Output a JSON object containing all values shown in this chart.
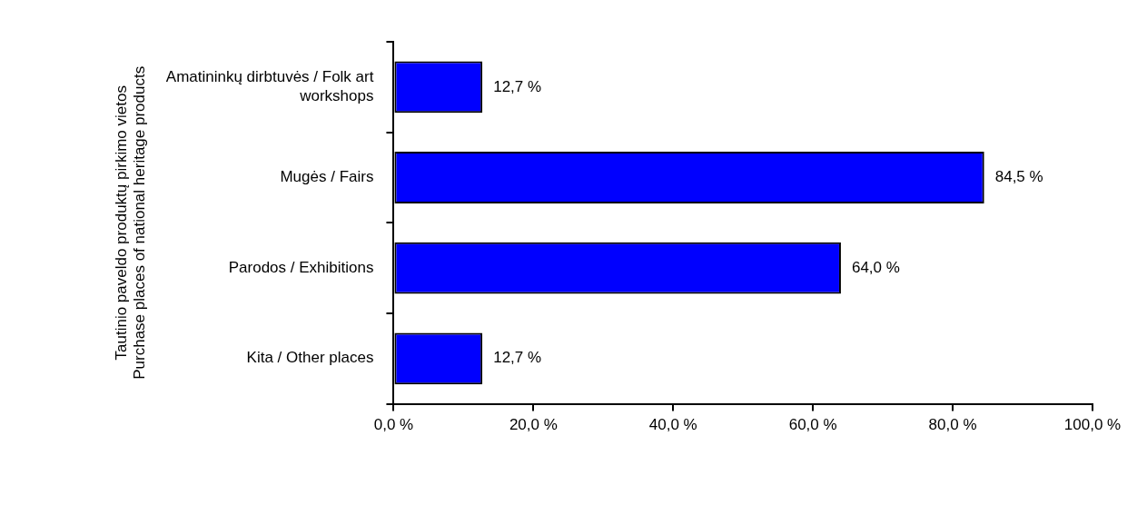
{
  "chart_data": {
    "type": "bar",
    "orientation": "horizontal",
    "ylabel": "Tautinio paveldo produktų pirkimo vietos\nPurchase places of national heritage products",
    "categories": [
      "Amatininkų dirbtuvės / Folk art workshops",
      "Mugės / Fairs",
      "Parodos / Exhibitions",
      "Kita / Other places"
    ],
    "values": [
      12.7,
      84.5,
      64.0,
      12.7
    ],
    "value_labels": [
      "12,7 %",
      "84,5 %",
      "64,0 %",
      "12,7 %"
    ],
    "color": "#0000ff",
    "xlim": [
      0,
      100
    ],
    "xticks": [
      {
        "value": 0,
        "label": "0,0 %"
      },
      {
        "value": 20,
        "label": "20,0 %"
      },
      {
        "value": 40,
        "label": "40,0 %"
      },
      {
        "value": 60,
        "label": "60,0 %"
      },
      {
        "value": 80,
        "label": "80,0 %"
      },
      {
        "value": 100,
        "label": "100,0 %"
      }
    ],
    "grid": false,
    "legend": false
  }
}
